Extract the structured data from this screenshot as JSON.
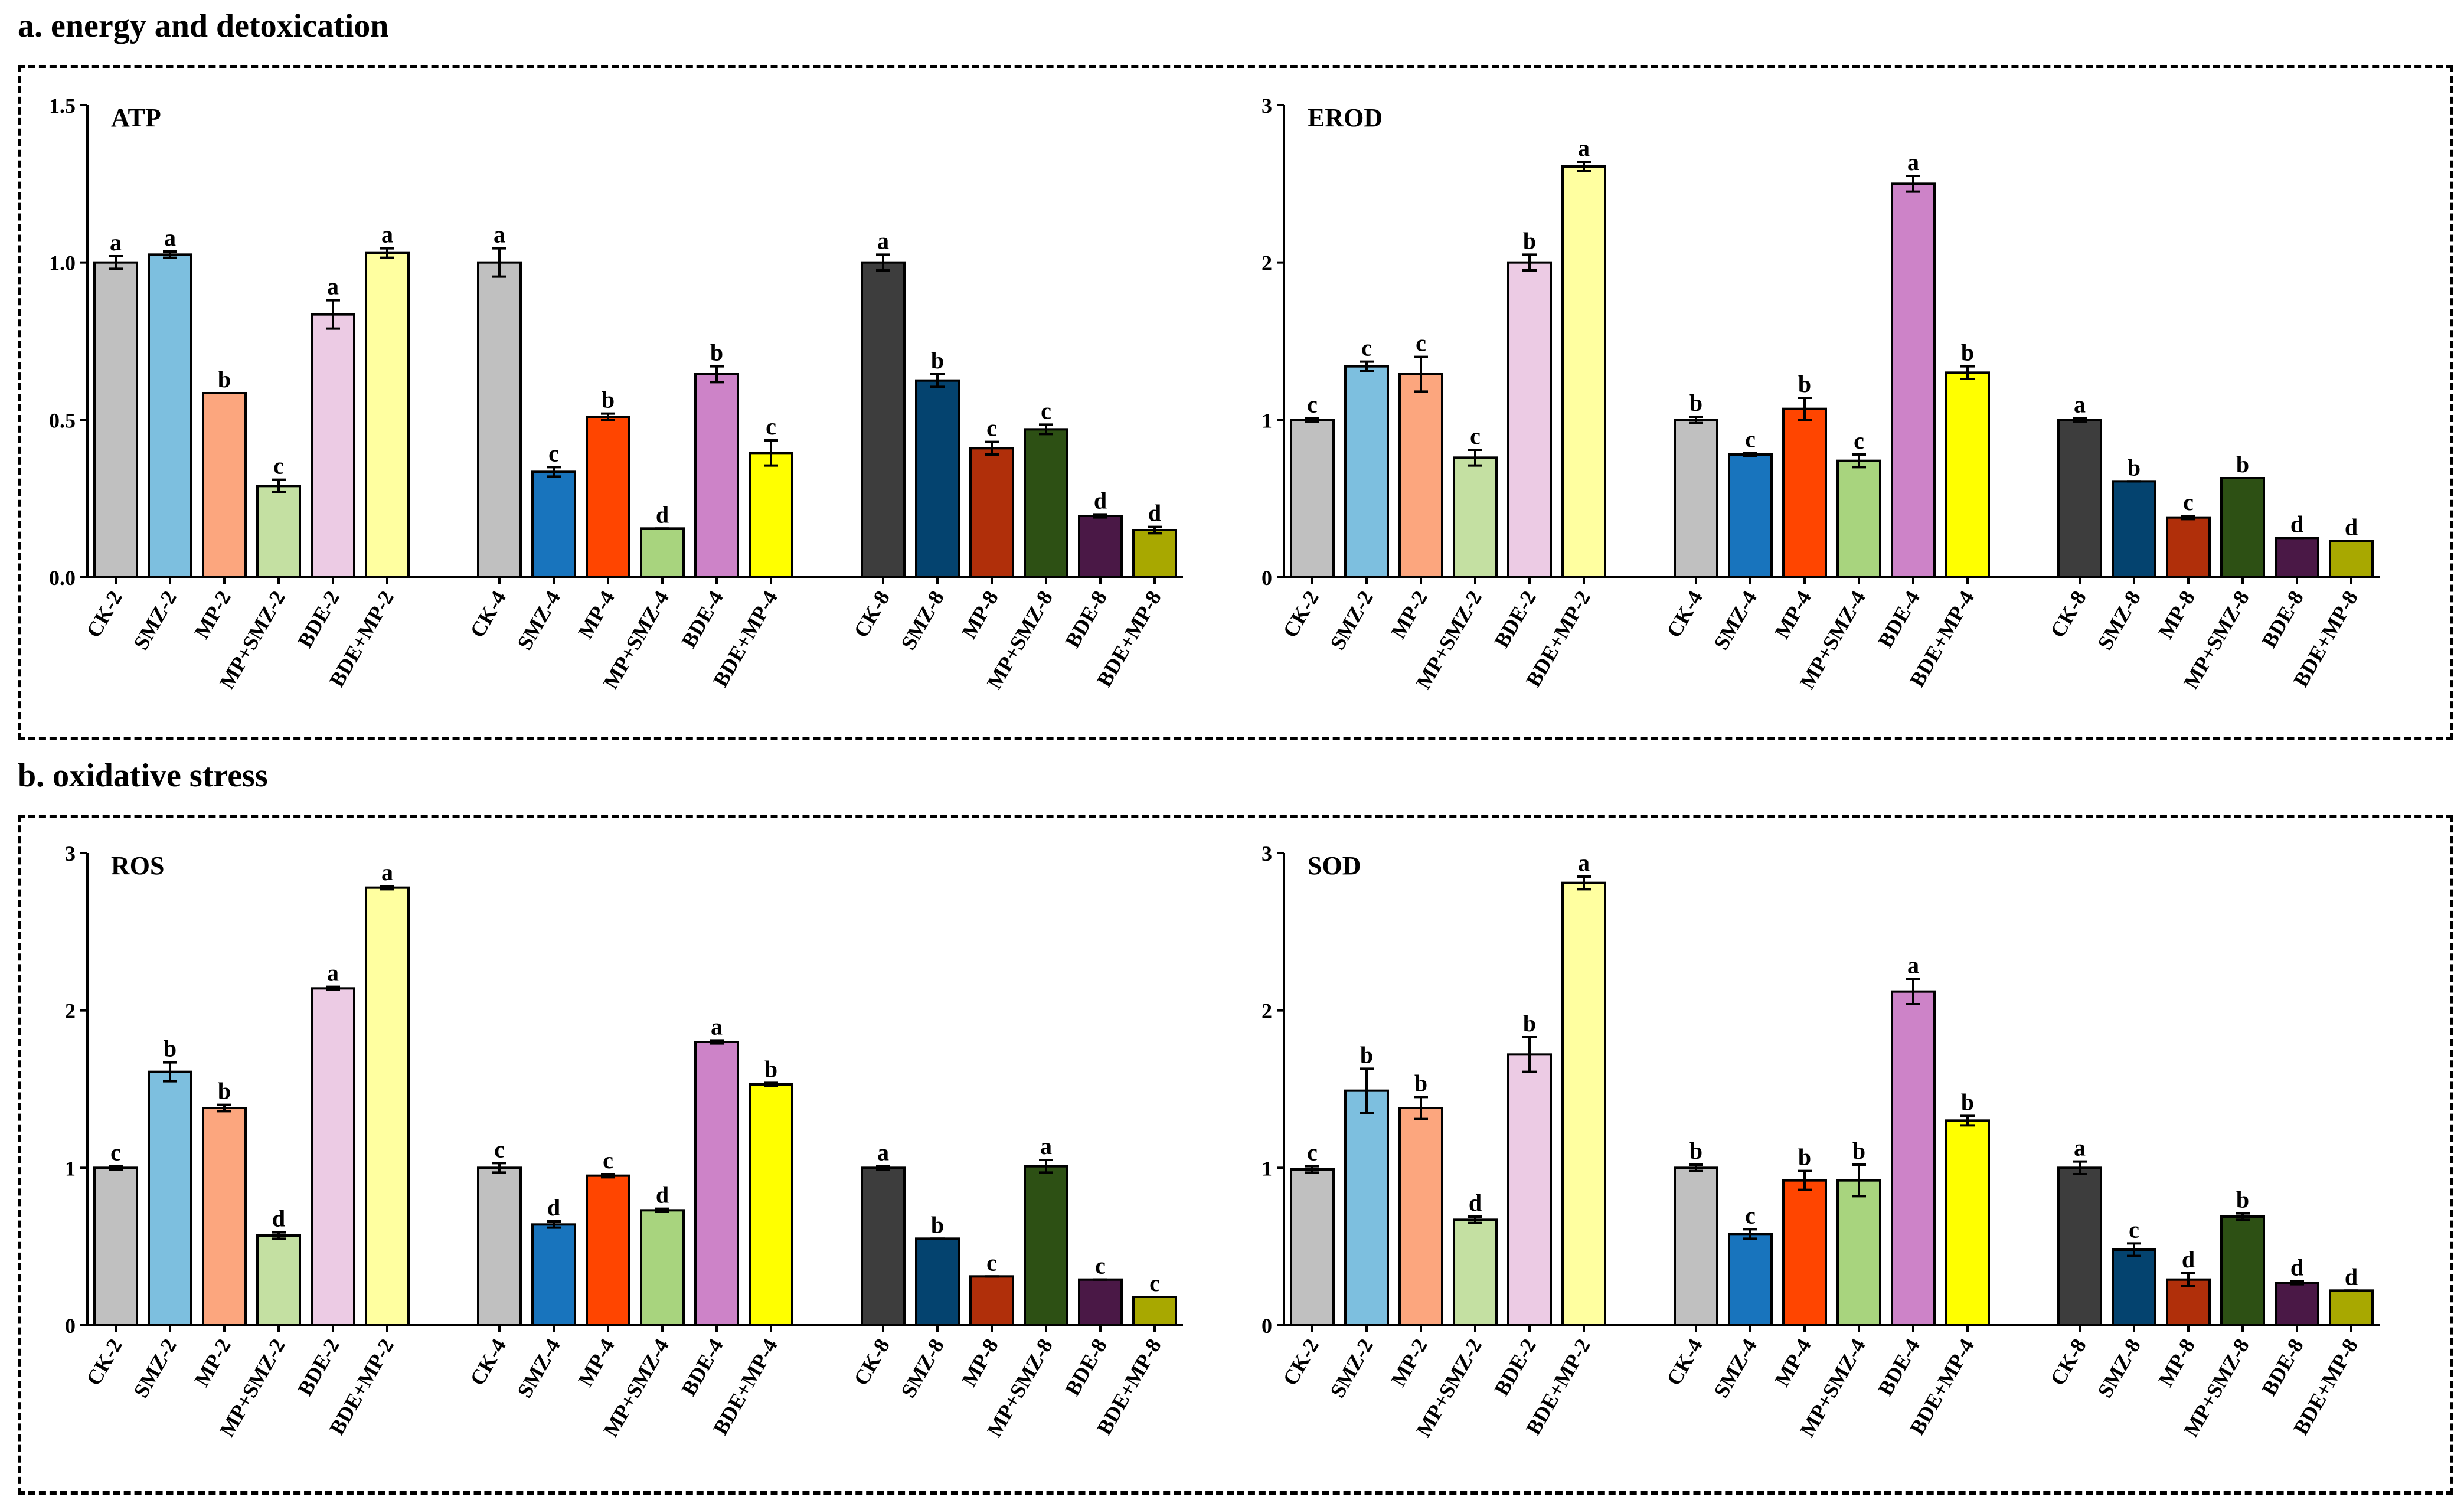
{
  "sections": [
    {
      "title": "a. energy and detoxication"
    },
    {
      "title": "b. oxidative stress"
    }
  ],
  "colors": {
    "CK-2": "#c0c0c0",
    "SMZ-2": "#7dbfdf",
    "MP-2": "#fca67e",
    "MP+SMZ-2": "#c4e0a2",
    "BDE-2": "#eccbe4",
    "BDE+MP-2": "#ffffa0",
    "CK-4": "#c0c0c0",
    "SMZ-4": "#1874bd",
    "MP-4": "#ff4500",
    "MP+SMZ-4": "#a8d47e",
    "BDE-4": "#cd83c8",
    "BDE+MP-4": "#ffff00",
    "CK-8": "#3d3d3d",
    "SMZ-8": "#04436f",
    "MP-8": "#b02f0a",
    "MP+SMZ-8": "#2d5014",
    "BDE-8": "#4a1846",
    "BDE+MP-8": "#a8a800"
  },
  "chart_data": [
    {
      "type": "bar",
      "title": "ATP",
      "ylim": [
        0,
        1.5
      ],
      "yticks": [
        "0.0",
        "0.5",
        "1.0",
        "1.5"
      ],
      "categories": [
        "CK-2",
        "SMZ-2",
        "MP-2",
        "MP+SMZ-2",
        "BDE-2",
        "BDE+MP-2",
        "CK-4",
        "SMZ-4",
        "MP-4",
        "MP+SMZ-4",
        "BDE-4",
        "BDE+MP-4",
        "CK-8",
        "SMZ-8",
        "MP-8",
        "MP+SMZ-8",
        "BDE-8",
        "BDE+MP-8"
      ],
      "values": [
        1.0,
        1.025,
        0.585,
        0.29,
        0.835,
        1.03,
        1.0,
        0.335,
        0.51,
        0.155,
        0.645,
        0.395,
        1.0,
        0.625,
        0.41,
        0.47,
        0.195,
        0.15
      ],
      "errors": [
        0.02,
        0.01,
        0.0,
        0.02,
        0.045,
        0.015,
        0.045,
        0.015,
        0.01,
        0.0,
        0.025,
        0.04,
        0.025,
        0.02,
        0.02,
        0.015,
        0.005,
        0.01
      ],
      "labels": [
        "a",
        "a",
        "b",
        "c",
        "a",
        "a",
        "a",
        "c",
        "b",
        "d",
        "b",
        "c",
        "a",
        "b",
        "c",
        "c",
        "d",
        "d"
      ]
    },
    {
      "type": "bar",
      "title": "EROD",
      "ylim": [
        0,
        3
      ],
      "yticks": [
        "0",
        "1",
        "2",
        "3"
      ],
      "categories": [
        "CK-2",
        "SMZ-2",
        "MP-2",
        "MP+SMZ-2",
        "BDE-2",
        "BDE+MP-2",
        "CK-4",
        "SMZ-4",
        "MP-4",
        "MP+SMZ-4",
        "BDE-4",
        "BDE+MP-4",
        "CK-8",
        "SMZ-8",
        "MP-8",
        "MP+SMZ-8",
        "BDE-8",
        "BDE+MP-8"
      ],
      "values": [
        1.0,
        1.34,
        1.29,
        0.76,
        2.0,
        2.61,
        1.0,
        0.78,
        1.07,
        0.74,
        2.5,
        1.3,
        1.0,
        0.61,
        0.38,
        0.63,
        0.25,
        0.23
      ],
      "errors": [
        0.01,
        0.03,
        0.11,
        0.05,
        0.05,
        0.03,
        0.02,
        0.01,
        0.07,
        0.04,
        0.05,
        0.04,
        0.01,
        0.0,
        0.01,
        0.0,
        0.0,
        0.0
      ],
      "labels": [
        "c",
        "c",
        "c",
        "c",
        "b",
        "a",
        "b",
        "c",
        "b",
        "c",
        "a",
        "b",
        "a",
        "b",
        "c",
        "b",
        "d",
        "d"
      ]
    },
    {
      "type": "bar",
      "title": "ROS",
      "ylim": [
        0,
        3
      ],
      "yticks": [
        "0",
        "1",
        "2",
        "3"
      ],
      "categories": [
        "CK-2",
        "SMZ-2",
        "MP-2",
        "MP+SMZ-2",
        "BDE-2",
        "BDE+MP-2",
        "CK-4",
        "SMZ-4",
        "MP-4",
        "MP+SMZ-4",
        "BDE-4",
        "BDE+MP-4",
        "CK-8",
        "SMZ-8",
        "MP-8",
        "MP+SMZ-8",
        "BDE-8",
        "BDE+MP-8"
      ],
      "values": [
        1.0,
        1.61,
        1.38,
        0.57,
        2.14,
        2.78,
        1.0,
        0.64,
        0.95,
        0.73,
        1.8,
        1.53,
        1.0,
        0.55,
        0.31,
        1.01,
        0.29,
        0.18
      ],
      "errors": [
        0.01,
        0.06,
        0.02,
        0.02,
        0.01,
        0.01,
        0.03,
        0.02,
        0.01,
        0.01,
        0.01,
        0.01,
        0.01,
        0.0,
        0.0,
        0.04,
        0.0,
        0.0
      ],
      "labels": [
        "c",
        "b",
        "b",
        "d",
        "a",
        "a",
        "c",
        "d",
        "c",
        "d",
        "a",
        "b",
        "a",
        "b",
        "c",
        "a",
        "c",
        "c"
      ]
    },
    {
      "type": "bar",
      "title": "SOD",
      "ylim": [
        0,
        3
      ],
      "yticks": [
        "0",
        "1",
        "2",
        "3"
      ],
      "categories": [
        "CK-2",
        "SMZ-2",
        "MP-2",
        "MP+SMZ-2",
        "BDE-2",
        "BDE+MP-2",
        "CK-4",
        "SMZ-4",
        "MP-4",
        "MP+SMZ-4",
        "BDE-4",
        "BDE+MP-4",
        "CK-8",
        "SMZ-8",
        "MP-8",
        "MP+SMZ-8",
        "BDE-8",
        "BDE+MP-8"
      ],
      "values": [
        0.99,
        1.49,
        1.38,
        0.67,
        1.72,
        2.81,
        1.0,
        0.58,
        0.92,
        0.92,
        2.12,
        1.3,
        1.0,
        0.48,
        0.29,
        0.69,
        0.27,
        0.22
      ],
      "errors": [
        0.02,
        0.14,
        0.07,
        0.02,
        0.11,
        0.04,
        0.02,
        0.03,
        0.06,
        0.1,
        0.08,
        0.03,
        0.04,
        0.04,
        0.04,
        0.02,
        0.01,
        0.0
      ],
      "labels": [
        "c",
        "b",
        "b",
        "d",
        "b",
        "a",
        "b",
        "c",
        "b",
        "b",
        "a",
        "b",
        "a",
        "c",
        "d",
        "b",
        "d",
        "d"
      ]
    }
  ]
}
